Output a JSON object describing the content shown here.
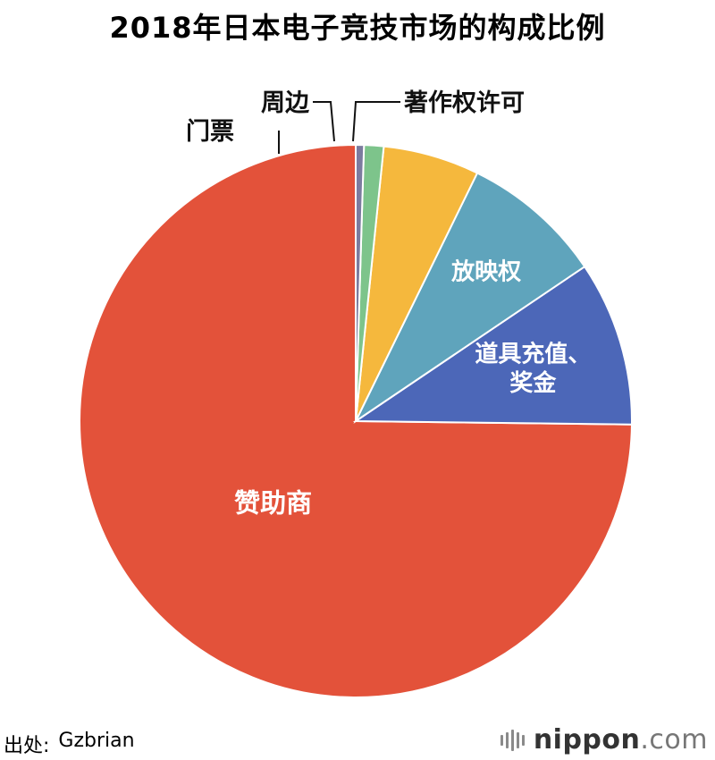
{
  "chart_data": {
    "type": "pie",
    "title": "2018年日本电子竞技市场的构成比例",
    "slices": [
      {
        "label": "赞助商",
        "value": 78.4,
        "color": "#e3523a"
      },
      {
        "label": "道具充值、\n奖金",
        "value": 10.1,
        "color": "#4c67b8"
      },
      {
        "label": "放映权",
        "value": 8.7,
        "color": "#5fa4bc"
      },
      {
        "label": "门票",
        "value": 5.9,
        "color": "#f5b83d"
      },
      {
        "label": "周边",
        "value": 1.2,
        "color": "#7dc48b"
      },
      {
        "label": "著作权许可",
        "value": 0.5,
        "color": "#7b7b9e"
      }
    ],
    "start": "12 o'clock, counter-clockwise"
  },
  "footer": {
    "source_label": "出处:",
    "source_value": "Gzbrian"
  },
  "brand": {
    "name": "nippon",
    "dot": ".",
    "tld": "com",
    "icon": "nippon-bars-icon"
  }
}
